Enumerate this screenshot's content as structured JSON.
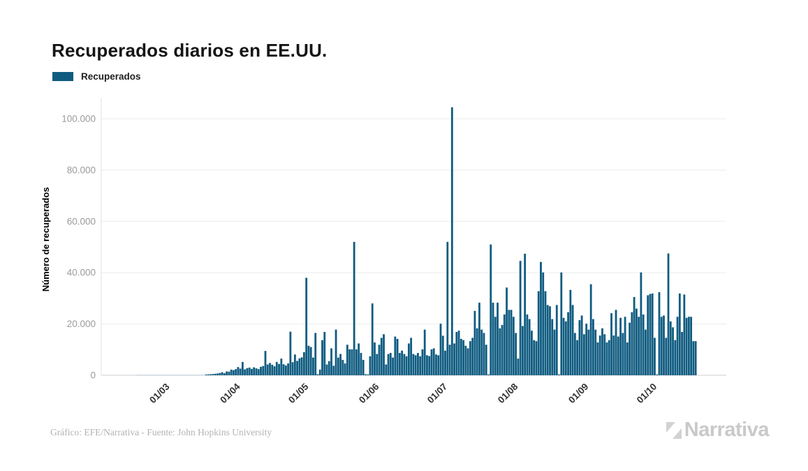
{
  "title": "Recuperados diarios en EE.UU.",
  "legend": {
    "label": "Recuperados",
    "color": "#0f5b80"
  },
  "footer": {
    "credit": "Gráfico: EFE/Narrativa - Fuente: John Hopkins University",
    "brand": "Narrativa"
  },
  "colors": {
    "bar": "#0f5b80",
    "bar_faint": "#bdd3e0",
    "grid": "#ededed",
    "axis_line": "#e2e2e2",
    "baseline": "#cfcfcf",
    "tick_label": "#9b9b9b",
    "x_label": "#333333",
    "title_text": "#151515",
    "credit_text": "#b3b3b3",
    "brand_text": "#c9c9c9"
  },
  "chart_data": {
    "type": "bar",
    "title": "Recuperados diarios en EE.UU.",
    "xlabel": "",
    "ylabel": "Número de recuperados",
    "grid": true,
    "legend_position": "top-left",
    "ylim": [
      0,
      106000
    ],
    "yticks": [
      0,
      20000,
      40000,
      60000,
      80000,
      100000
    ],
    "ytick_labels": [
      "0",
      "20.000",
      "40.000",
      "60.000",
      "80.000",
      "100.000"
    ],
    "x_start_date": "15/02/2020",
    "x_ticks": [
      {
        "label": "01/03",
        "index": 15
      },
      {
        "label": "01/04",
        "index": 46
      },
      {
        "label": "01/05",
        "index": 76
      },
      {
        "label": "01/06",
        "index": 107
      },
      {
        "label": "01/07",
        "index": 137
      },
      {
        "label": "01/08",
        "index": 168
      },
      {
        "label": "01/09",
        "index": 199
      },
      {
        "label": "01/10",
        "index": 229
      }
    ],
    "series": [
      {
        "name": "Recuperados",
        "color": "#0f5b80",
        "values": [
          0,
          0,
          0,
          0,
          5,
          3,
          8,
          6,
          4,
          10,
          12,
          8,
          15,
          20,
          25,
          20,
          30,
          25,
          40,
          50,
          45,
          60,
          80,
          70,
          90,
          110,
          130,
          120,
          150,
          180,
          200,
          190,
          230,
          260,
          300,
          350,
          420,
          500,
          600,
          700,
          900,
          1200,
          800,
          1500,
          1400,
          2200,
          2000,
          2400,
          3200,
          2600,
          5200,
          2300,
          2800,
          3000,
          2500,
          3100,
          2700,
          2400,
          3300,
          3600,
          9500,
          4200,
          4800,
          4100,
          3500,
          5200,
          4400,
          6500,
          4300,
          3800,
          4600,
          17000,
          5100,
          8100,
          5600,
          6600,
          7000,
          9000,
          38000,
          11500,
          11000,
          6900,
          16500,
          400,
          2200,
          13700,
          16900,
          4200,
          5500,
          10500,
          3700,
          17800,
          6900,
          8300,
          6000,
          4600,
          11900,
          10100,
          10100,
          52000,
          10100,
          12400,
          8700,
          6000,
          400,
          300,
          7400,
          28000,
          12800,
          8300,
          11900,
          14600,
          16000,
          4200,
          8300,
          8700,
          6900,
          15100,
          14200,
          8700,
          9600,
          8300,
          7400,
          12400,
          14600,
          8300,
          7800,
          8700,
          7400,
          10100,
          17800,
          7800,
          7500,
          10100,
          10500,
          8100,
          7800,
          20100,
          15400,
          9600,
          52000,
          11900,
          104500,
          12400,
          16900,
          17400,
          14200,
          13700,
          11500,
          10500,
          13300,
          14600,
          25100,
          18300,
          28300,
          17800,
          16500,
          11900,
          300,
          51000,
          28300,
          22800,
          28300,
          18300,
          19600,
          23700,
          34200,
          25500,
          25500,
          22800,
          16500,
          6500,
          44600,
          19200,
          47400,
          23700,
          21900,
          17400,
          13700,
          13300,
          32800,
          44200,
          40100,
          32800,
          27400,
          26900,
          21900,
          17800,
          27400,
          300,
          40100,
          22400,
          21000,
          24600,
          33300,
          27400,
          16500,
          13700,
          21500,
          23300,
          16000,
          20100,
          17800,
          35500,
          21900,
          17800,
          12800,
          15500,
          18300,
          16000,
          12800,
          13700,
          24200,
          15500,
          25500,
          15100,
          22400,
          16500,
          22800,
          12800,
          20500,
          24600,
          30500,
          26000,
          22800,
          40100,
          23700,
          17800,
          31200,
          31700,
          31900,
          14600,
          300,
          32400,
          22800,
          23300,
          14600,
          47500,
          21000,
          18700,
          13700,
          22800,
          31900,
          16900,
          31500,
          22400,
          22800,
          22800,
          13300,
          13300
        ]
      }
    ]
  }
}
